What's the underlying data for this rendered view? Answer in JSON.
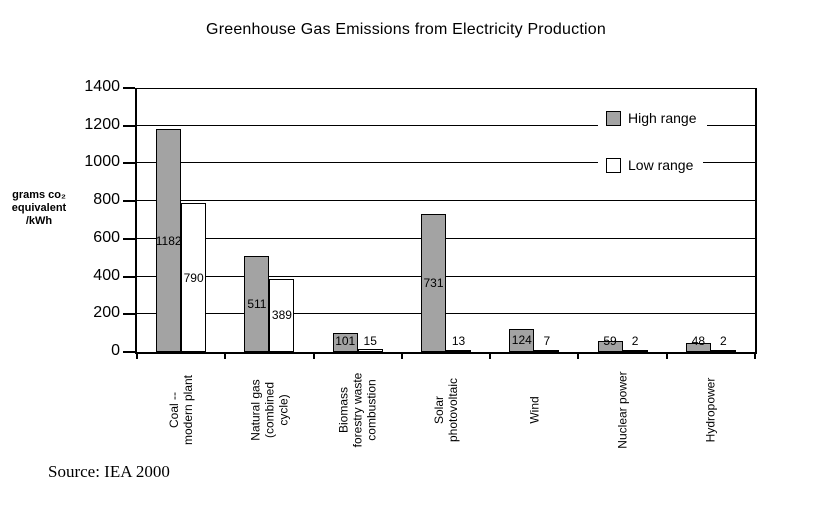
{
  "chart_data": {
    "type": "bar",
    "title": "Greenhouse Gas Emissions from Electricity Production",
    "ylabel": "grams co₂\nequivalent\n/kWh",
    "xlabel": "",
    "ylim": [
      0,
      1400
    ],
    "yticks": [
      0,
      200,
      400,
      600,
      800,
      1000,
      1200,
      1400
    ],
    "grid": "horizontal",
    "legend_position": "inside-top-right",
    "bar_value_labels": true,
    "categories": [
      "Coal --\nmodern plant",
      "Natural gas\n(combined\ncycle)",
      "Biomass\nforestry waste\ncombustion",
      "Solar\nphotovoltaic",
      "Wind",
      "Nuclear power",
      "Hydropower"
    ],
    "series": [
      {
        "name": "High range",
        "color": "#a3a3a3",
        "values": [
          1182,
          511,
          101,
          731,
          124,
          59,
          48
        ]
      },
      {
        "name": "Low range",
        "color": "#ffffff",
        "values": [
          790,
          389,
          15,
          13,
          7,
          2,
          2
        ]
      }
    ],
    "source_note": "Source: IEA 2000"
  }
}
